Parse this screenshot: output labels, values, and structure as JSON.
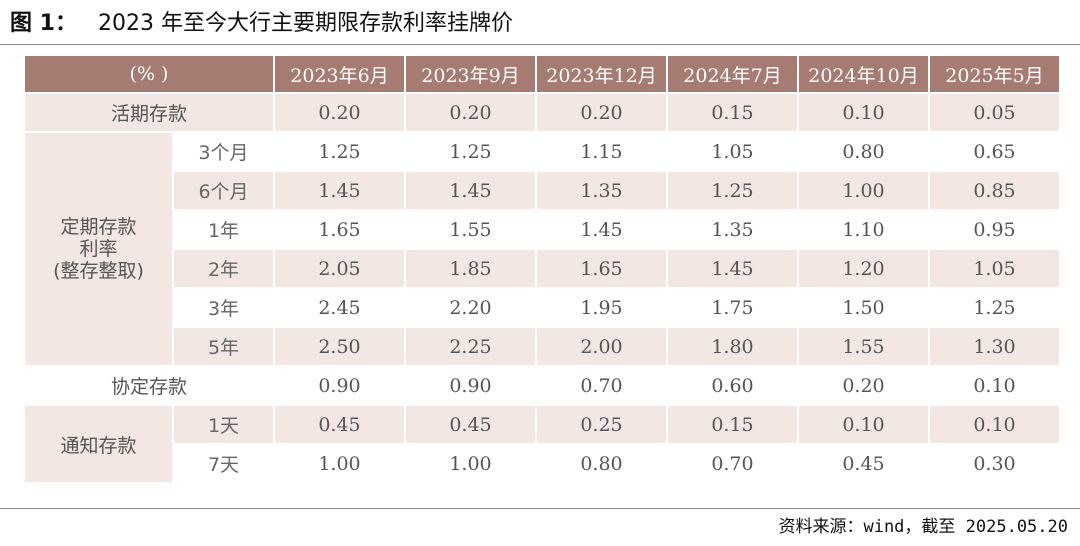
{
  "figure": {
    "number_label": "图 1：",
    "title": "2023 年至今大行主要期限存款利率挂牌价"
  },
  "table": {
    "unit_header": "(% )",
    "columns": [
      "2023年6月",
      "2023年9月",
      "2023年12月",
      "2024年7月",
      "2024年10月",
      "2025年5月"
    ],
    "demand": {
      "label": "活期存款",
      "values": [
        "0.20",
        "0.20",
        "0.20",
        "0.15",
        "0.10",
        "0.05"
      ]
    },
    "time_deposit": {
      "group_label_line1": "定期存款",
      "group_label_line2": "利率",
      "group_label_line3": "(整存整取)",
      "rows": [
        {
          "term": "3个月",
          "values": [
            "1.25",
            "1.25",
            "1.15",
            "1.05",
            "0.80",
            "0.65"
          ]
        },
        {
          "term": "6个月",
          "values": [
            "1.45",
            "1.45",
            "1.35",
            "1.25",
            "1.00",
            "0.85"
          ]
        },
        {
          "term": "1年",
          "values": [
            "1.65",
            "1.55",
            "1.45",
            "1.35",
            "1.10",
            "0.95"
          ]
        },
        {
          "term": "2年",
          "values": [
            "2.05",
            "1.85",
            "1.65",
            "1.45",
            "1.20",
            "1.05"
          ]
        },
        {
          "term": "3年",
          "values": [
            "2.45",
            "2.20",
            "1.95",
            "1.75",
            "1.50",
            "1.25"
          ]
        },
        {
          "term": "5年",
          "values": [
            "2.50",
            "2.25",
            "2.00",
            "1.80",
            "1.55",
            "1.30"
          ]
        }
      ]
    },
    "agreement": {
      "label": "协定存款",
      "values": [
        "0.90",
        "0.90",
        "0.70",
        "0.60",
        "0.20",
        "0.10"
      ]
    },
    "notice": {
      "group_label": "通知存款",
      "rows": [
        {
          "term": "1天",
          "values": [
            "0.45",
            "0.45",
            "0.25",
            "0.15",
            "0.10",
            "0.10"
          ]
        },
        {
          "term": "7天",
          "values": [
            "1.00",
            "1.00",
            "0.80",
            "0.70",
            "0.45",
            "0.30"
          ]
        }
      ]
    }
  },
  "source": "资料来源：wind，截至 2025.05.20",
  "colors": {
    "header_bg": "#a67c72",
    "stripe_bg": "#f2e7e3"
  }
}
